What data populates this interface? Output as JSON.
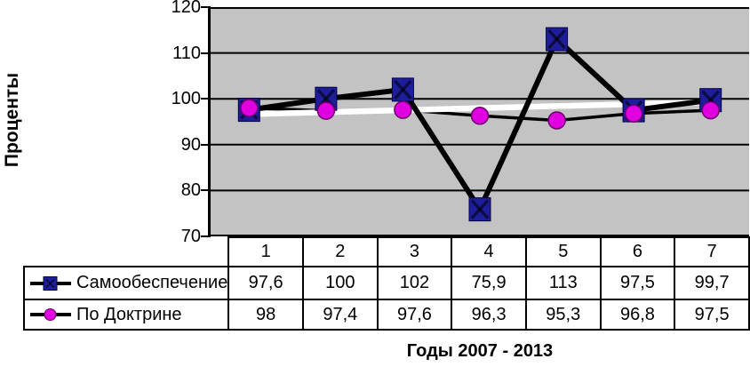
{
  "y_axis": {
    "title": "Проценты",
    "tick_labels": [
      "120",
      "110",
      "100",
      "90",
      "80",
      "70"
    ]
  },
  "x_axis": {
    "title": "Годы 2007 - 2013"
  },
  "table": {
    "categories": [
      "1",
      "2",
      "3",
      "4",
      "5",
      "6",
      "7"
    ]
  },
  "colors": {
    "plot_background": "#c3c3c3",
    "gridline": "#000000",
    "series1_marker": "#1e1e9c",
    "series2_marker": "#e000e0",
    "trendline": "#ffffff"
  },
  "chart_data": {
    "type": "line",
    "title": "",
    "xlabel": "Годы 2007 - 2013",
    "ylabel": "Проценты",
    "categories": [
      1,
      2,
      3,
      4,
      5,
      6,
      7
    ],
    "ylim": [
      70,
      120
    ],
    "ytick_step": 10,
    "grid": true,
    "legend_position": "table-left",
    "plot_bg": "#c3c3c3",
    "series": [
      {
        "name": "Самообеспечение",
        "values": [
          97.6,
          100,
          102,
          75.9,
          113,
          97.5,
          99.7
        ],
        "display": [
          "97,6",
          "100",
          "102",
          "75,9",
          "113",
          "97,5",
          "99,7"
        ],
        "marker": "square",
        "marker_color": "#1e1e9c",
        "line_color": "#000000",
        "line_width": 6
      },
      {
        "name": "По Доктрине",
        "values": [
          98,
          97.4,
          97.6,
          96.3,
          95.3,
          96.8,
          97.5
        ],
        "display": [
          "98",
          "97,4",
          "97,6",
          "96,3",
          "95,3",
          "96,8",
          "97,5"
        ],
        "marker": "circle",
        "marker_color": "#e000e0",
        "line_color": "#000000",
        "line_width": 3.5
      }
    ],
    "trendline": {
      "series": "Самообеспечение",
      "color": "#ffffff",
      "y_start": 96.64,
      "y_end": 99.28,
      "width": 6.5
    }
  }
}
